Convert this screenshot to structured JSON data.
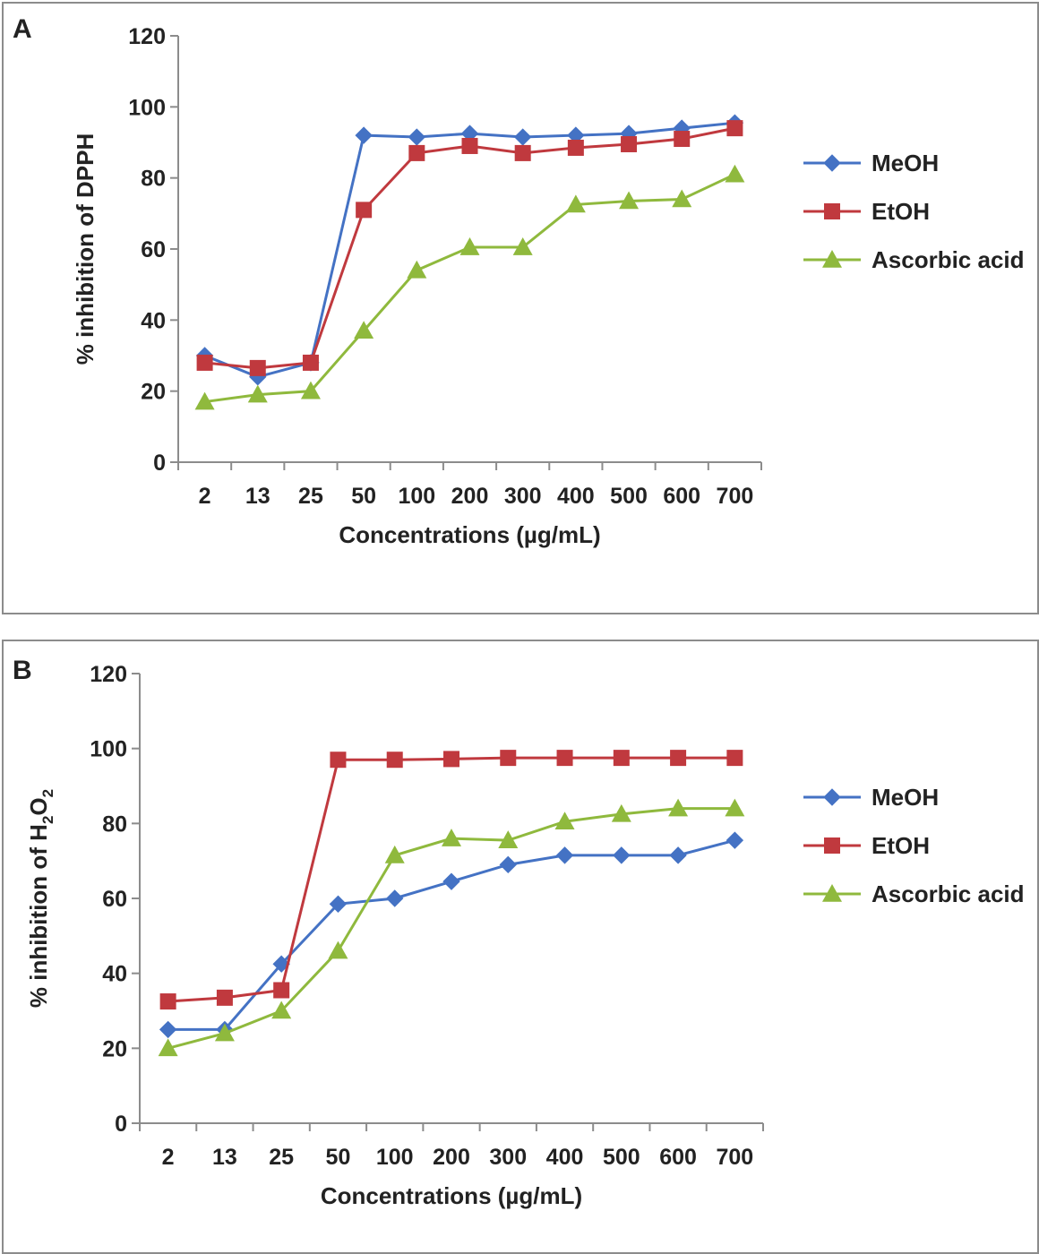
{
  "chart_data": [
    {
      "type": "line",
      "panel_label": "A",
      "categories": [
        "2",
        "13",
        "25",
        "50",
        "100",
        "200",
        "300",
        "400",
        "500",
        "600",
        "700"
      ],
      "xlabel": "Concentrations (µg/mL)",
      "ylabel": "% inhibition of DPPH",
      "ylim": [
        0,
        120
      ],
      "yticks": [
        0,
        20,
        40,
        60,
        80,
        100,
        120
      ],
      "grid": false,
      "legend": "right",
      "series": [
        {
          "name": "MeOH",
          "marker": "diamond",
          "color": "#4472c4",
          "values": [
            30,
            24,
            28,
            92,
            91.5,
            92.5,
            91.5,
            92,
            92.5,
            94,
            95.5
          ]
        },
        {
          "name": "EtOH",
          "marker": "square",
          "color": "#c0393e",
          "values": [
            28,
            26.5,
            28,
            71,
            87,
            89,
            87,
            88.5,
            89.5,
            91,
            94
          ]
        },
        {
          "name": "Ascorbic acid",
          "marker": "triangle",
          "color": "#8fb93d",
          "values": [
            17,
            19,
            20,
            37,
            54,
            60.5,
            60.5,
            72.5,
            73.5,
            74,
            81
          ]
        }
      ]
    },
    {
      "type": "line",
      "panel_label": "B",
      "categories": [
        "2",
        "13",
        "25",
        "50",
        "100",
        "200",
        "300",
        "400",
        "500",
        "600",
        "700"
      ],
      "xlabel": "Concentrations (µg/mL)",
      "ylabel_parts": [
        "% inhibition of H",
        "2",
        "O",
        "2"
      ],
      "ylim": [
        0,
        120
      ],
      "yticks": [
        0,
        20,
        40,
        60,
        80,
        100,
        120
      ],
      "grid": false,
      "legend": "right",
      "series": [
        {
          "name": "MeOH",
          "marker": "diamond",
          "color": "#4472c4",
          "values": [
            25,
            25,
            42.5,
            58.5,
            60,
            64.5,
            69,
            71.5,
            71.5,
            71.5,
            75.5
          ]
        },
        {
          "name": "EtOH",
          "marker": "square",
          "color": "#c0393e",
          "values": [
            32.5,
            33.5,
            35.5,
            97,
            97,
            97.2,
            97.5,
            97.5,
            97.5,
            97.5,
            97.5
          ]
        },
        {
          "name": "Ascorbic acid",
          "marker": "triangle",
          "color": "#8fb93d",
          "values": [
            20,
            24,
            30,
            46,
            71.5,
            76,
            75.5,
            80.5,
            82.5,
            84,
            84
          ]
        }
      ]
    }
  ]
}
